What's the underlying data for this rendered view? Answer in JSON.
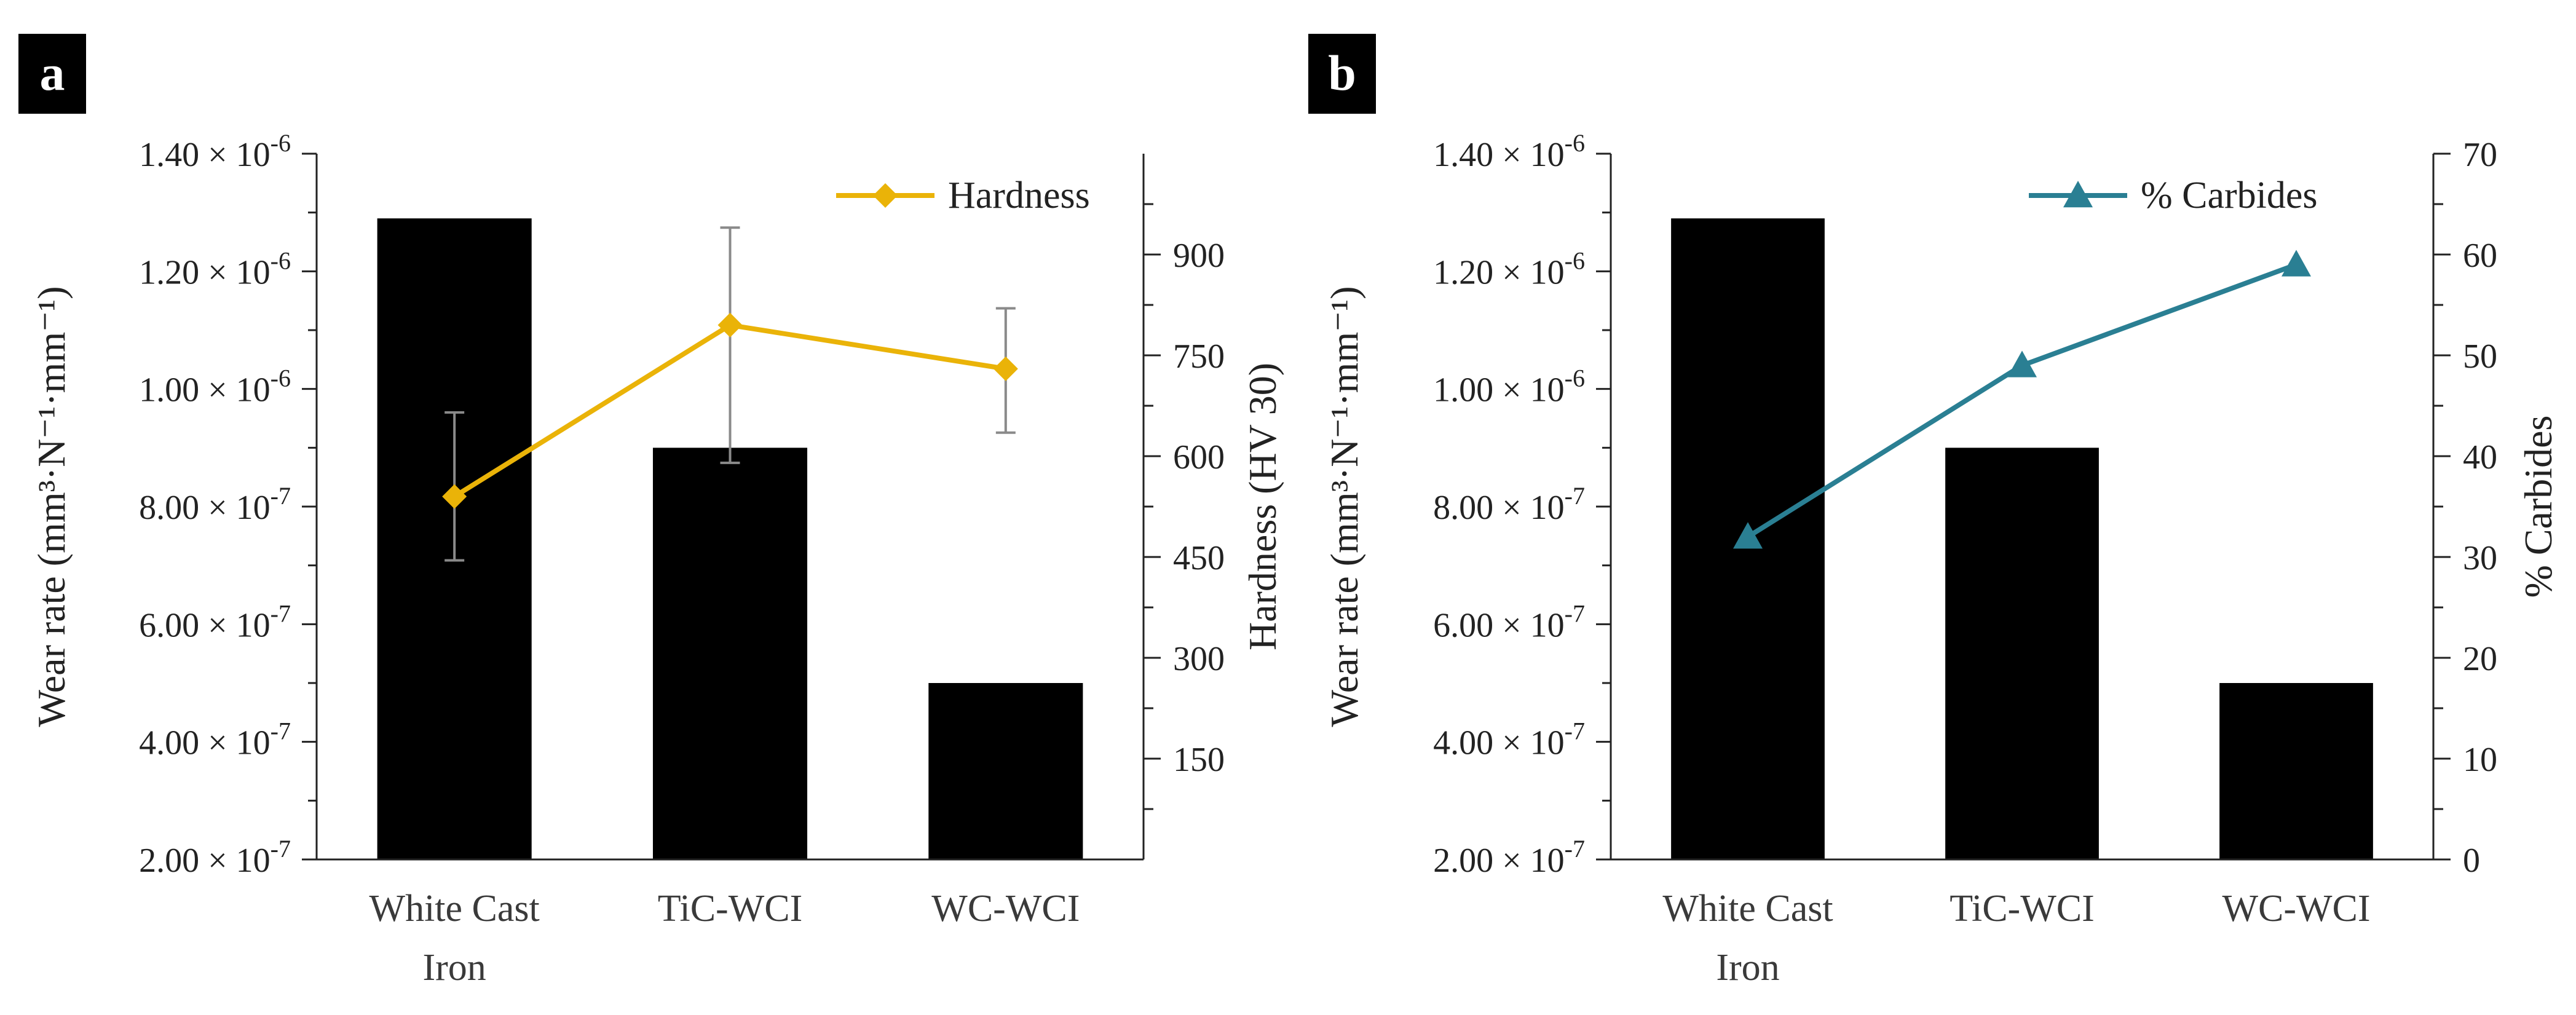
{
  "chart_data": [
    {
      "panel_label": "a",
      "type": "bar",
      "categories": [
        [
          "White Cast",
          "Iron"
        ],
        [
          "TiC-WCI"
        ],
        [
          "WC-WCI"
        ]
      ],
      "bar_series": {
        "name": "",
        "values": [
          1.29e-06,
          9e-07,
          5e-07
        ]
      },
      "line_series": {
        "name": "Hardness",
        "values": [
          540,
          795,
          730
        ],
        "error_low": [
          445,
          590,
          635
        ],
        "error_high": [
          665,
          940,
          820
        ],
        "color": "#EAB308",
        "marker": "diamond"
      },
      "ylabel": "Wear rate (mm³·N⁻¹·mm⁻¹)",
      "y2label": "Hardness (HV 30)",
      "ylim": [
        2e-07,
        1.4e-06
      ],
      "y2lim": [
        0,
        1050
      ],
      "yticks": [
        {
          "value": 2e-07,
          "mant": "2.00",
          "exp": "-7"
        },
        {
          "value": 4e-07,
          "mant": "4.00",
          "exp": "-7"
        },
        {
          "value": 6e-07,
          "mant": "6.00",
          "exp": "-7"
        },
        {
          "value": 8e-07,
          "mant": "8.00",
          "exp": "-7"
        },
        {
          "value": 1e-06,
          "mant": "1.00",
          "exp": "-6"
        },
        {
          "value": 1.2e-06,
          "mant": "1.20",
          "exp": "-6"
        },
        {
          "value": 1.4e-06,
          "mant": "1.40",
          "exp": "-6"
        }
      ],
      "y2ticks": [
        "150",
        "300",
        "450",
        "600",
        "750",
        "900"
      ],
      "legend_position": "top-right"
    },
    {
      "panel_label": "b",
      "type": "bar",
      "categories": [
        [
          "White Cast",
          "Iron"
        ],
        [
          "TiC-WCI"
        ],
        [
          "WC-WCI"
        ]
      ],
      "bar_series": {
        "name": "",
        "values": [
          1.29e-06,
          9e-07,
          5e-07
        ]
      },
      "line_series": {
        "name": "% Carbides",
        "values": [
          32,
          49,
          59
        ],
        "color": "#2A7F93",
        "marker": "triangle"
      },
      "ylabel": "Wear rate (mm³·N⁻¹·mm⁻¹)",
      "y2label": "% Carbides",
      "ylim": [
        2e-07,
        1.4e-06
      ],
      "y2lim": [
        0,
        70
      ],
      "yticks": [
        {
          "value": 2e-07,
          "mant": "2.00",
          "exp": "-7"
        },
        {
          "value": 4e-07,
          "mant": "4.00",
          "exp": "-7"
        },
        {
          "value": 6e-07,
          "mant": "6.00",
          "exp": "-7"
        },
        {
          "value": 8e-07,
          "mant": "8.00",
          "exp": "-7"
        },
        {
          "value": 1e-06,
          "mant": "1.00",
          "exp": "-6"
        },
        {
          "value": 1.2e-06,
          "mant": "1.20",
          "exp": "-6"
        },
        {
          "value": 1.4e-06,
          "mant": "1.40",
          "exp": "-6"
        }
      ],
      "y2ticks": [
        "0",
        "10",
        "20",
        "30",
        "40",
        "50",
        "60",
        "70"
      ],
      "legend_position": "top-right"
    }
  ]
}
